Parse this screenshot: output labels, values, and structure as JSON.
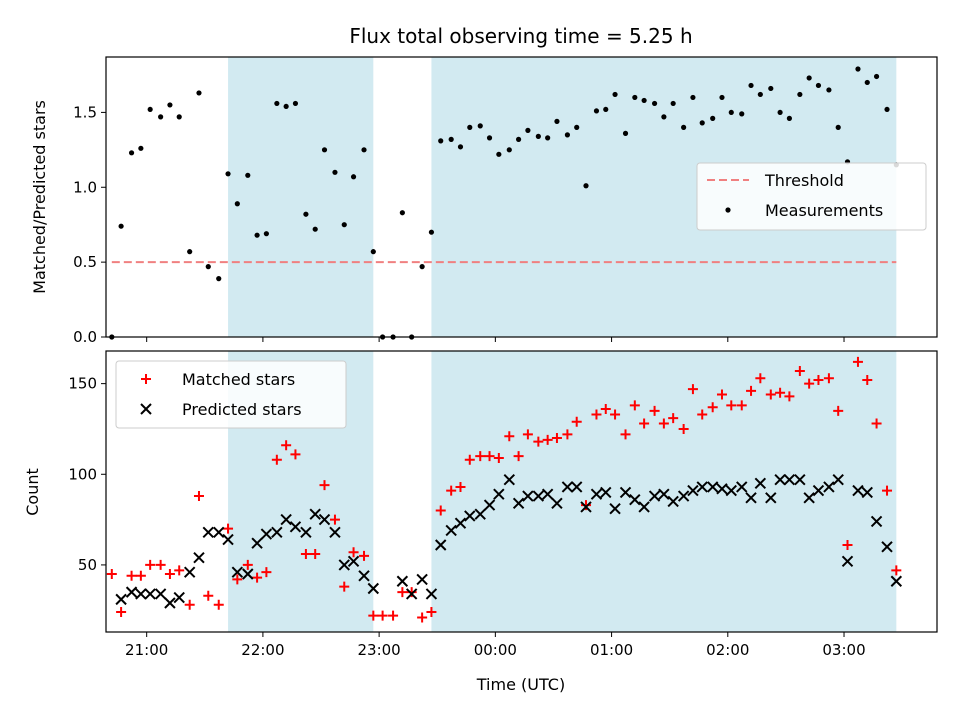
{
  "chart_data": [
    {
      "type": "scatter",
      "title": "Flux total observing time = 5.25 h",
      "xlabel": "",
      "ylabel": "Matched/Predicted stars",
      "ylim": [
        0,
        1.87
      ],
      "yticks": [
        "0.0",
        "0.5",
        "1.0",
        "1.5"
      ],
      "ytick_values": [
        0,
        0.5,
        1.0,
        1.5
      ],
      "xlim_hours": [
        20.65,
        27.8
      ],
      "tick_hours": [
        21,
        22,
        23,
        24,
        25,
        26,
        27
      ],
      "shaded_intervals_hours": [
        [
          21.7,
          22.95
        ],
        [
          23.45,
          27.45
        ]
      ],
      "shade_color": "#add8e6",
      "threshold": {
        "name": "Threshold",
        "y": 0.5,
        "x_from": 20.7,
        "x_to": 27.45,
        "color": "#f08080"
      },
      "legend": {
        "position": "center-right",
        "entries": [
          "Threshold",
          "Measurements"
        ]
      },
      "series": [
        {
          "name": "Measurements",
          "color": "#000000",
          "marker": "dot",
          "x": [
            20.7,
            20.78,
            20.87,
            20.95,
            21.03,
            21.12,
            21.2,
            21.28,
            21.37,
            21.45,
            21.53,
            21.62,
            21.7,
            21.78,
            21.87,
            21.95,
            22.03,
            22.12,
            22.2,
            22.28,
            22.37,
            22.45,
            22.53,
            22.62,
            22.7,
            22.78,
            22.87,
            22.95,
            23.03,
            23.12,
            23.2,
            23.28,
            23.37,
            23.45,
            23.53,
            23.62,
            23.7,
            23.78,
            23.87,
            23.95,
            24.03,
            24.12,
            24.2,
            24.28,
            24.37,
            24.45,
            24.53,
            24.62,
            24.7,
            24.78,
            24.87,
            24.95,
            25.03,
            25.12,
            25.2,
            25.28,
            25.37,
            25.45,
            25.53,
            25.62,
            25.7,
            25.78,
            25.87,
            25.95,
            26.03,
            26.12,
            26.2,
            26.28,
            26.37,
            26.45,
            26.53,
            26.62,
            26.7,
            26.78,
            26.87,
            26.95,
            27.03,
            27.12,
            27.2,
            27.28,
            27.37,
            27.45
          ],
          "y": [
            0.0,
            0.74,
            1.23,
            1.26,
            1.52,
            1.47,
            1.55,
            1.47,
            0.57,
            1.63,
            0.47,
            0.39,
            1.09,
            0.89,
            1.08,
            0.68,
            0.69,
            1.56,
            1.54,
            1.56,
            0.82,
            0.72,
            1.25,
            1.1,
            0.75,
            1.07,
            1.25,
            0.57,
            0.0,
            0.0,
            0.83,
            0.0,
            0.47,
            0.7,
            1.31,
            1.32,
            1.27,
            1.4,
            1.41,
            1.33,
            1.22,
            1.25,
            1.32,
            1.38,
            1.34,
            1.33,
            1.44,
            1.35,
            1.4,
            1.01,
            1.51,
            1.52,
            1.62,
            1.36,
            1.6,
            1.58,
            1.56,
            1.47,
            1.56,
            1.4,
            1.6,
            1.43,
            1.46,
            1.6,
            1.5,
            1.49,
            1.68,
            1.62,
            1.66,
            1.5,
            1.46,
            1.62,
            1.73,
            1.68,
            1.65,
            1.4,
            1.17,
            1.79,
            1.7,
            1.74,
            1.52,
            1.15
          ]
        }
      ]
    },
    {
      "type": "scatter",
      "title": "",
      "xlabel": "Time (UTC)",
      "ylabel": "Count",
      "ylim": [
        13,
        168
      ],
      "yticks": [
        "50",
        "100",
        "150"
      ],
      "ytick_values": [
        50,
        100,
        150
      ],
      "xlim_hours": [
        20.65,
        27.8
      ],
      "tick_hours": [
        21,
        22,
        23,
        24,
        25,
        26,
        27
      ],
      "xtick_labels": [
        "21:00",
        "22:00",
        "23:00",
        "00:00",
        "01:00",
        "02:00",
        "03:00"
      ],
      "shaded_intervals_hours": [
        [
          21.7,
          22.95
        ],
        [
          23.45,
          27.45
        ]
      ],
      "legend": {
        "position": "upper-left",
        "entries": [
          "Matched stars",
          "Predicted stars"
        ]
      },
      "series": [
        {
          "name": "Matched stars",
          "color": "#ff0000",
          "marker": "plus",
          "x": [
            20.7,
            20.78,
            20.87,
            20.95,
            21.03,
            21.12,
            21.2,
            21.28,
            21.37,
            21.45,
            21.53,
            21.62,
            21.7,
            21.78,
            21.87,
            21.95,
            22.03,
            22.12,
            22.2,
            22.28,
            22.37,
            22.45,
            22.53,
            22.62,
            22.7,
            22.78,
            22.87,
            22.95,
            23.03,
            23.12,
            23.2,
            23.28,
            23.37,
            23.45,
            23.53,
            23.62,
            23.7,
            23.78,
            23.87,
            23.95,
            24.03,
            24.12,
            24.2,
            24.28,
            24.37,
            24.45,
            24.53,
            24.62,
            24.7,
            24.78,
            24.87,
            24.95,
            25.03,
            25.12,
            25.2,
            25.28,
            25.37,
            25.45,
            25.53,
            25.62,
            25.7,
            25.78,
            25.87,
            25.95,
            26.03,
            26.12,
            26.2,
            26.28,
            26.37,
            26.45,
            26.53,
            26.62,
            26.7,
            26.78,
            26.87,
            26.95,
            27.03,
            27.12,
            27.2,
            27.28,
            27.37,
            27.45
          ],
          "y": [
            45,
            24,
            44,
            44,
            50,
            50,
            45,
            47,
            28,
            88,
            33,
            28,
            70,
            42,
            50,
            43,
            46,
            108,
            116,
            111,
            56,
            56,
            94,
            75,
            38,
            57,
            55,
            22,
            22,
            22,
            35,
            35,
            21,
            24,
            80,
            91,
            93,
            108,
            110,
            110,
            109,
            121,
            110,
            122,
            118,
            119,
            120,
            122,
            129,
            83,
            133,
            136,
            133,
            122,
            138,
            128,
            135,
            128,
            131,
            125,
            147,
            133,
            137,
            144,
            138,
            138,
            146,
            153,
            144,
            145,
            143,
            157,
            150,
            152,
            153,
            135,
            61,
            162,
            152,
            128,
            91,
            47
          ]
        },
        {
          "name": "Predicted stars",
          "color": "#000000",
          "marker": "x",
          "x": [
            20.7,
            20.78,
            20.87,
            20.95,
            21.03,
            21.12,
            21.2,
            21.28,
            21.37,
            21.45,
            21.53,
            21.62,
            21.7,
            21.78,
            21.87,
            21.95,
            22.03,
            22.12,
            22.2,
            22.28,
            22.37,
            22.45,
            22.53,
            22.62,
            22.7,
            22.78,
            22.87,
            22.95,
            23.03,
            23.12,
            23.2,
            23.28,
            23.37,
            23.45,
            23.53,
            23.62,
            23.7,
            23.78,
            23.87,
            23.95,
            24.03,
            24.12,
            24.2,
            24.28,
            24.37,
            24.45,
            24.53,
            24.62,
            24.7,
            24.78,
            24.87,
            24.95,
            25.03,
            25.12,
            25.2,
            25.28,
            25.37,
            25.45,
            25.53,
            25.62,
            25.7,
            25.78,
            25.87,
            25.95,
            26.03,
            26.12,
            26.2,
            26.28,
            26.37,
            26.45,
            26.53,
            26.62,
            26.7,
            26.78,
            26.87,
            26.95,
            27.03,
            27.12,
            27.2,
            27.28,
            27.37,
            27.45
          ],
          "y": [
            null,
            31,
            35,
            34,
            34,
            34,
            29,
            32,
            46,
            54,
            68,
            68,
            64,
            46,
            45,
            62,
            67,
            68,
            75,
            71,
            68,
            78,
            75,
            68,
            50,
            52,
            44,
            37,
            null,
            null,
            41,
            34,
            42,
            34,
            61,
            69,
            73,
            77,
            78,
            83,
            89,
            97,
            84,
            88,
            88,
            89,
            84,
            93,
            93,
            82,
            89,
            90,
            81,
            90,
            86,
            82,
            88,
            89,
            85,
            88,
            91,
            93,
            93,
            92,
            91,
            93,
            87,
            95,
            87,
            97,
            97,
            97,
            87,
            91,
            93,
            97,
            52,
            91,
            90,
            74,
            60,
            41
          ]
        }
      ]
    }
  ]
}
